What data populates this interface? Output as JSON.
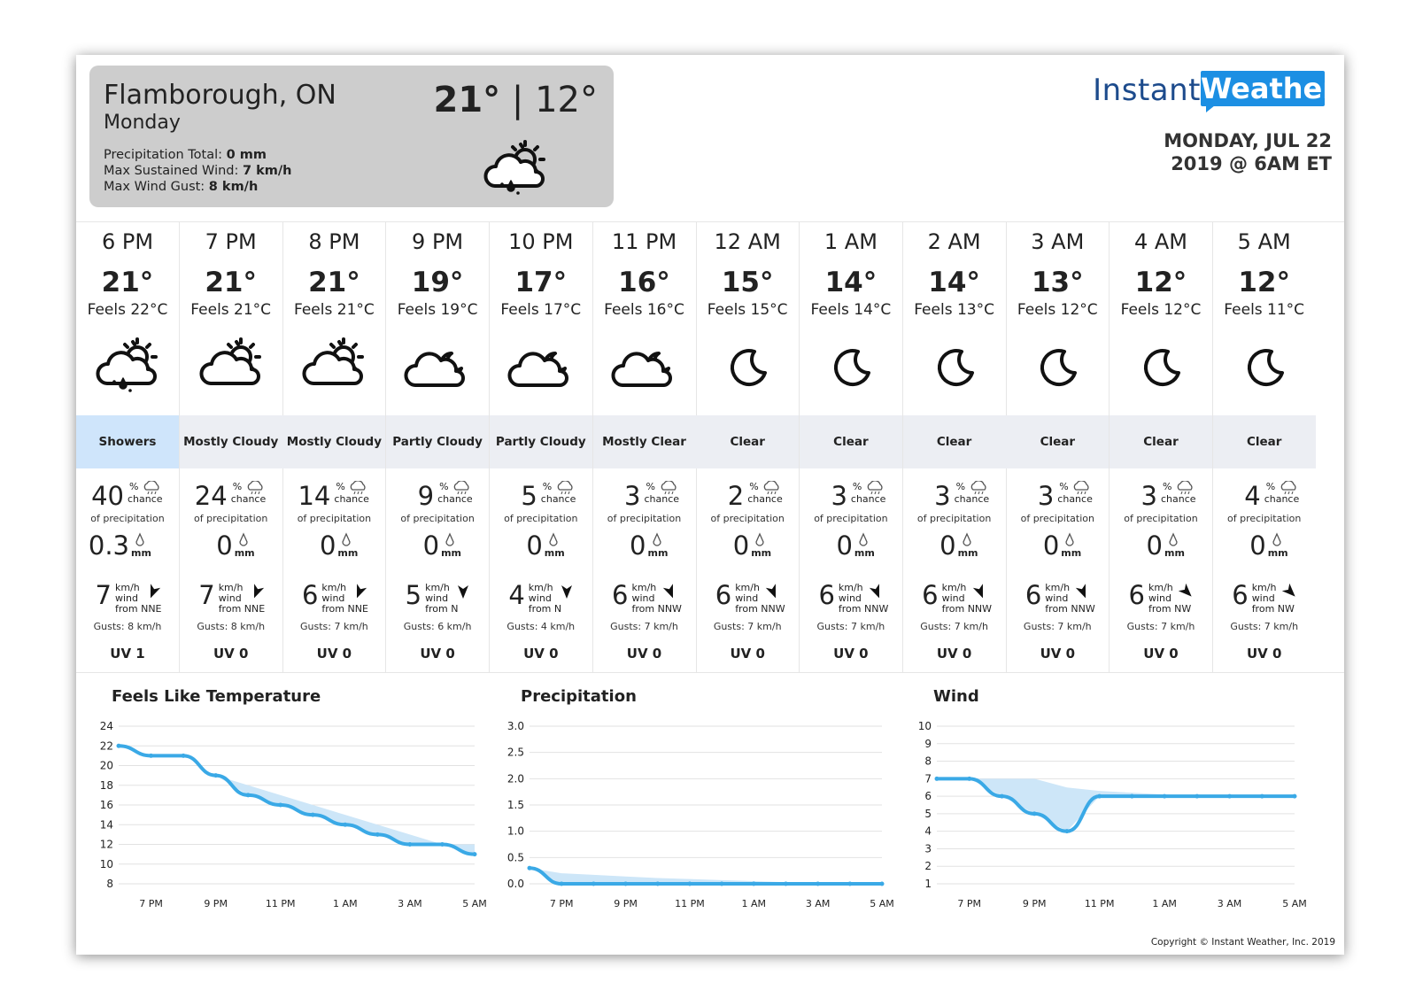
{
  "summary": {
    "location": "Flamborough, ON",
    "day": "Monday",
    "precip_label": "Precipitation Total: ",
    "precip_value": "0 mm",
    "wind_label": "Max Sustained Wind: ",
    "wind_value": "7 km/h",
    "gust_label": "Max Wind Gust: ",
    "gust_value": "8 km/h",
    "high": "21°",
    "separator": " | ",
    "low": "12°",
    "icon": "sun-cloud-rain-icon"
  },
  "brand": {
    "instant": "Instant",
    "weather": "Weather",
    "color_dark": "#1d4b8c",
    "color_accent": "#1c8fe3"
  },
  "issued": {
    "line1": "MONDAY, JUL 22",
    "line2": "2019 @ 6AM ET"
  },
  "labels": {
    "chance": "chance",
    "pct": "%",
    "of_precip": "of precipitation",
    "mm": "mm",
    "kmh": "km/h",
    "wind": "wind"
  },
  "hours": [
    {
      "time": "6 PM",
      "temp": "21°",
      "feels": "Feels 22°C",
      "icon": "sun-cloud-rain-icon",
      "condition": "Showers",
      "highlight": true,
      "pop": "40",
      "amount": "0.3",
      "wind": "7",
      "dir": "from NNE",
      "deg": 202,
      "gust": "Gusts: 8 km/h",
      "uv": "UV 1"
    },
    {
      "time": "7 PM",
      "temp": "21°",
      "feels": "Feels 21°C",
      "icon": "sun-cloud-icon",
      "condition": "Mostly Cloudy",
      "highlight": false,
      "pop": "24",
      "amount": "0",
      "wind": "7",
      "dir": "from NNE",
      "deg": 202,
      "gust": "Gusts: 8 km/h",
      "uv": "UV 0"
    },
    {
      "time": "8 PM",
      "temp": "21°",
      "feels": "Feels 21°C",
      "icon": "sun-cloud-icon",
      "condition": "Mostly Cloudy",
      "highlight": false,
      "pop": "14",
      "amount": "0",
      "wind": "6",
      "dir": "from NNE",
      "deg": 202,
      "gust": "Gusts: 7 km/h",
      "uv": "UV 0"
    },
    {
      "time": "9 PM",
      "temp": "19°",
      "feels": "Feels 19°C",
      "icon": "moon-cloud-icon",
      "condition": "Partly Cloudy",
      "highlight": false,
      "pop": "9",
      "amount": "0",
      "wind": "5",
      "dir": "from N",
      "deg": 180,
      "gust": "Gusts: 6 km/h",
      "uv": "UV 0"
    },
    {
      "time": "10 PM",
      "temp": "17°",
      "feels": "Feels 17°C",
      "icon": "moon-cloud-icon",
      "condition": "Partly Cloudy",
      "highlight": false,
      "pop": "5",
      "amount": "0",
      "wind": "4",
      "dir": "from N",
      "deg": 180,
      "gust": "Gusts: 4 km/h",
      "uv": "UV 0"
    },
    {
      "time": "11 PM",
      "temp": "16°",
      "feels": "Feels 16°C",
      "icon": "moon-cloud-icon",
      "condition": "Mostly Clear",
      "highlight": false,
      "pop": "3",
      "amount": "0",
      "wind": "6",
      "dir": "from NNW",
      "deg": 158,
      "gust": "Gusts: 7 km/h",
      "uv": "UV 0"
    },
    {
      "time": "12 AM",
      "temp": "15°",
      "feels": "Feels 15°C",
      "icon": "moon-icon",
      "condition": "Clear",
      "highlight": false,
      "pop": "2",
      "amount": "0",
      "wind": "6",
      "dir": "from NNW",
      "deg": 158,
      "gust": "Gusts: 7 km/h",
      "uv": "UV 0"
    },
    {
      "time": "1 AM",
      "temp": "14°",
      "feels": "Feels 14°C",
      "icon": "moon-icon",
      "condition": "Clear",
      "highlight": false,
      "pop": "3",
      "amount": "0",
      "wind": "6",
      "dir": "from NNW",
      "deg": 158,
      "gust": "Gusts: 7 km/h",
      "uv": "UV 0"
    },
    {
      "time": "2 AM",
      "temp": "14°",
      "feels": "Feels 13°C",
      "icon": "moon-icon",
      "condition": "Clear",
      "highlight": false,
      "pop": "3",
      "amount": "0",
      "wind": "6",
      "dir": "from NNW",
      "deg": 158,
      "gust": "Gusts: 7 km/h",
      "uv": "UV 0"
    },
    {
      "time": "3 AM",
      "temp": "13°",
      "feels": "Feels 12°C",
      "icon": "moon-icon",
      "condition": "Clear",
      "highlight": false,
      "pop": "3",
      "amount": "0",
      "wind": "6",
      "dir": "from NNW",
      "deg": 158,
      "gust": "Gusts: 7 km/h",
      "uv": "UV 0"
    },
    {
      "time": "4 AM",
      "temp": "12°",
      "feels": "Feels 12°C",
      "icon": "moon-icon",
      "condition": "Clear",
      "highlight": false,
      "pop": "3",
      "amount": "0",
      "wind": "6",
      "dir": "from NW",
      "deg": 135,
      "gust": "Gusts: 7 km/h",
      "uv": "UV 0"
    },
    {
      "time": "5 AM",
      "temp": "12°",
      "feels": "Feels 11°C",
      "icon": "moon-icon",
      "condition": "Clear",
      "highlight": false,
      "pop": "4",
      "amount": "0",
      "wind": "6",
      "dir": "from NW",
      "deg": 135,
      "gust": "Gusts: 7 km/h",
      "uv": "UV 0"
    }
  ],
  "chart_data": [
    {
      "type": "line",
      "title": "Feels Like Temperature",
      "x": [
        "6 PM",
        "7 PM",
        "8 PM",
        "9 PM",
        "10 PM",
        "11 PM",
        "12 AM",
        "1 AM",
        "2 AM",
        "3 AM",
        "4 AM",
        "5 AM"
      ],
      "xticks": [
        "7 PM",
        "9 PM",
        "11 PM",
        "1 AM",
        "3 AM",
        "5 AM"
      ],
      "series": [
        {
          "values": [
            22,
            21,
            21,
            19,
            17,
            16,
            15,
            14,
            13,
            12,
            12,
            11
          ]
        },
        {
          "values": [
            22,
            21,
            21,
            19,
            18,
            17,
            16,
            15,
            14,
            13,
            12,
            12
          ]
        }
      ],
      "ylim": [
        8,
        24
      ],
      "yticks": [
        8,
        10,
        12,
        14,
        16,
        18,
        20,
        22,
        24
      ],
      "color": "#3aa9e6"
    },
    {
      "type": "line",
      "title": "Precipitation",
      "x": [
        "6 PM",
        "7 PM",
        "8 PM",
        "9 PM",
        "10 PM",
        "11 PM",
        "12 AM",
        "1 AM",
        "2 AM",
        "3 AM",
        "4 AM",
        "5 AM"
      ],
      "xticks": [
        "7 PM",
        "9 PM",
        "11 PM",
        "1 AM",
        "3 AM",
        "5 AM"
      ],
      "series": [
        {
          "values": [
            0.3,
            0,
            0,
            0,
            0,
            0,
            0,
            0,
            0,
            0,
            0,
            0
          ]
        },
        {
          "values": [
            0.3,
            0.2,
            0.17,
            0.14,
            0.11,
            0.09,
            0.07,
            0.05,
            0.03,
            0.02,
            0.01,
            0
          ]
        }
      ],
      "ylim": [
        0,
        3
      ],
      "yticks": [
        "0.0",
        "0.5",
        "1.0",
        "1.5",
        "2.0",
        "2.5",
        "3.0"
      ],
      "color": "#3aa9e6"
    },
    {
      "type": "line",
      "title": "Wind",
      "x": [
        "6 PM",
        "7 PM",
        "8 PM",
        "9 PM",
        "10 PM",
        "11 PM",
        "12 AM",
        "1 AM",
        "2 AM",
        "3 AM",
        "4 AM",
        "5 AM"
      ],
      "xticks": [
        "7 PM",
        "9 PM",
        "11 PM",
        "1 AM",
        "3 AM",
        "5 AM"
      ],
      "series": [
        {
          "values": [
            7,
            7,
            6,
            5,
            4,
            6,
            6,
            6,
            6,
            6,
            6,
            6
          ]
        },
        {
          "values": [
            7,
            7,
            7,
            7,
            6.5,
            6.3,
            6.2,
            6.1,
            6,
            6,
            6,
            6
          ]
        }
      ],
      "ylim": [
        1,
        10
      ],
      "yticks": [
        1,
        2,
        3,
        4,
        5,
        6,
        7,
        8,
        9,
        10
      ],
      "color": "#3aa9e6"
    }
  ],
  "copyright": "Copyright © Instant Weather, Inc. 2019"
}
